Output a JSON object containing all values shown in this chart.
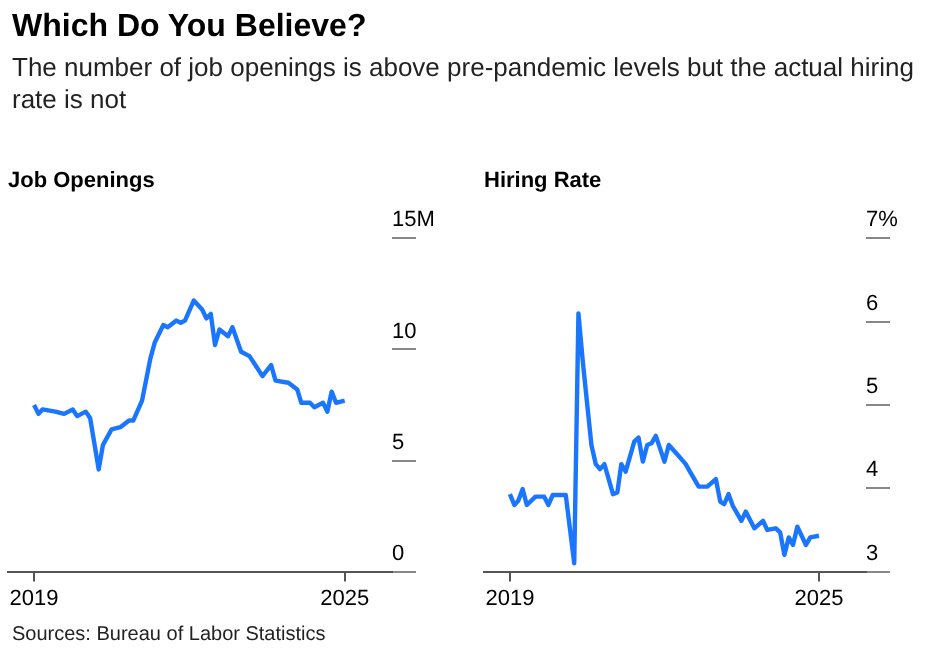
{
  "chart_data": [
    {
      "type": "other",
      "title": "Which Do You Believe?",
      "subtitle": "The number of job openings is above pre-pandemic levels but the actual hiring rate is not",
      "annotations": [
        "Sources: Bureau of Labor Statistics"
      ]
    },
    {
      "type": "line",
      "title": "Job Openings",
      "xlim": [
        "2018-07",
        "2025-12"
      ],
      "xticks": [
        "2019",
        "2025"
      ],
      "ylim": [
        0,
        15
      ],
      "yticks": [
        0,
        {
          "value": 5,
          "label": "5"
        },
        10,
        {
          "value": 15,
          "label": "15M"
        }
      ],
      "grid": false,
      "legend": false,
      "x": [
        "2019-01",
        "2019-02",
        "2019-03",
        "2019-06",
        "2019-08",
        "2019-10",
        "2019-11",
        "2020-01",
        "2020-02",
        "2020-04",
        "2020-05",
        "2020-07",
        "2020-09",
        "2020-11",
        "2020-12",
        "2021-02",
        "2021-04",
        "2021-05",
        "2021-07",
        "2021-08",
        "2021-10",
        "2021-11",
        "2021-12",
        "2022-02",
        "2022-04",
        "2022-05",
        "2022-06",
        "2022-07",
        "2022-08",
        "2022-10",
        "2022-11",
        "2023-01",
        "2023-03",
        "2023-04",
        "2023-06",
        "2023-08",
        "2023-09",
        "2023-12",
        "2024-02",
        "2024-03",
        "2024-05",
        "2024-06",
        "2024-08",
        "2024-09",
        "2024-10",
        "2024-11",
        "2025-01"
      ],
      "series": [
        {
          "color": "#1a75ff",
          "values": [
            7.5,
            7.1,
            7.3,
            7.2,
            7.1,
            7.3,
            7.0,
            7.2,
            6.9,
            4.6,
            5.7,
            6.4,
            6.5,
            6.8,
            6.8,
            7.7,
            9.6,
            10.3,
            11.1,
            11.0,
            11.3,
            11.2,
            11.3,
            12.2,
            11.8,
            11.4,
            11.6,
            10.2,
            10.9,
            10.6,
            11.0,
            9.9,
            9.7,
            9.4,
            8.8,
            9.3,
            8.6,
            8.5,
            8.2,
            7.6,
            7.6,
            7.4,
            7.6,
            7.2,
            8.1,
            7.6,
            7.7
          ]
        }
      ]
    },
    {
      "type": "line",
      "title": "Hiring Rate",
      "xlim": [
        "2018-07",
        "2025-12"
      ],
      "xticks": [
        "2019",
        "2025"
      ],
      "ylim": [
        3,
        7
      ],
      "yticks": [
        3,
        4,
        5,
        6,
        {
          "value": 7,
          "label": "7%"
        }
      ],
      "grid": false,
      "legend": false,
      "x": [
        "2019-01",
        "2019-02",
        "2019-03",
        "2019-04",
        "2019-05",
        "2019-07",
        "2019-09",
        "2019-10",
        "2019-11",
        "2020-02",
        "2020-04",
        "2020-05",
        "2020-06",
        "2020-08",
        "2020-09",
        "2020-10",
        "2020-11",
        "2021-01",
        "2021-02",
        "2021-03",
        "2021-04",
        "2021-06",
        "2021-07",
        "2021-08",
        "2021-09",
        "2021-10",
        "2021-11",
        "2022-01",
        "2022-02",
        "2022-04",
        "2022-06",
        "2022-07",
        "2022-09",
        "2022-11",
        "2023-01",
        "2023-02",
        "2023-03",
        "2023-04",
        "2023-05",
        "2023-07",
        "2023-08",
        "2023-10",
        "2023-12",
        "2024-01",
        "2024-03",
        "2024-04",
        "2024-05",
        "2024-06",
        "2024-07",
        "2024-08",
        "2024-10",
        "2024-11",
        "2025-01"
      ],
      "series": [
        {
          "color": "#1a75ff",
          "values": [
            3.93,
            3.8,
            3.85,
            3.99,
            3.8,
            3.9,
            3.9,
            3.8,
            3.92,
            3.92,
            3.1,
            6.1,
            5.52,
            4.52,
            4.29,
            4.23,
            4.29,
            3.93,
            3.95,
            4.29,
            4.2,
            4.56,
            4.61,
            4.32,
            4.52,
            4.54,
            4.63,
            4.32,
            4.52,
            4.41,
            4.29,
            4.2,
            4.02,
            4.02,
            4.11,
            3.84,
            3.81,
            3.93,
            3.79,
            3.61,
            3.72,
            3.52,
            3.61,
            3.5,
            3.52,
            3.47,
            3.2,
            3.41,
            3.32,
            3.54,
            3.32,
            3.41,
            3.43
          ]
        }
      ]
    }
  ]
}
